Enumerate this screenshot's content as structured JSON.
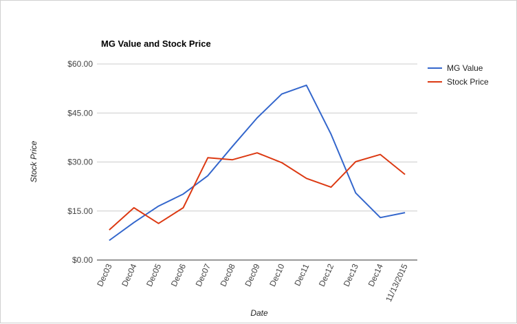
{
  "chart_data": {
    "type": "line",
    "title": "MG Value and Stock Price",
    "xlabel": "Date",
    "ylabel": "Stock Price",
    "categories": [
      "Dec03",
      "Dec04",
      "Dec05",
      "Dec06",
      "Dec07",
      "Dec08",
      "Dec09",
      "Dec10",
      "Dec11",
      "Dec12",
      "Dec13",
      "Dec14",
      "11/13/2015"
    ],
    "y_ticks": [
      "$0.00",
      "$15.00",
      "$30.00",
      "$45.00",
      "$60.00"
    ],
    "ylim": [
      0,
      60
    ],
    "grid": true,
    "legend_position": "right",
    "series": [
      {
        "name": "MG Value",
        "color": "#3366cc",
        "values": [
          6.0,
          11.5,
          16.5,
          20.2,
          25.8,
          34.8,
          43.5,
          50.8,
          53.5,
          38.5,
          20.5,
          13.0,
          14.5
        ]
      },
      {
        "name": "Stock Price",
        "color": "#dc3912",
        "values": [
          9.2,
          16.0,
          11.2,
          16.0,
          31.3,
          30.7,
          32.8,
          29.8,
          25.0,
          22.3,
          30.1,
          32.3,
          26.2
        ]
      }
    ]
  }
}
